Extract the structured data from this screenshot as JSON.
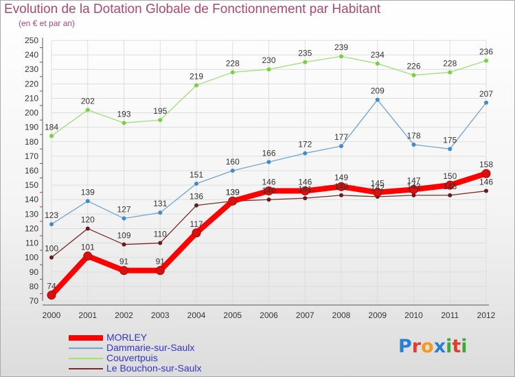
{
  "header": {
    "title": "Evolution de la Dotation Globale de Fonctionnement par Habitant",
    "subtitle": "(en € et par an)"
  },
  "logo": {
    "text": "Proxiti",
    "colors": [
      "#2a7fd4",
      "#e43b2f",
      "#f39a1c",
      "#2a7fd4",
      "#3ca83c",
      "#e43b2f",
      "#3ca83c"
    ]
  },
  "chart_data": {
    "type": "line",
    "x": [
      "2000",
      "2001",
      "2002",
      "2003",
      "2004",
      "2005",
      "2006",
      "2007",
      "2008",
      "2009",
      "2010",
      "2011",
      "2012"
    ],
    "ylim": [
      70,
      250
    ],
    "yticks": [
      70,
      80,
      90,
      100,
      110,
      120,
      130,
      140,
      150,
      160,
      170,
      180,
      190,
      200,
      210,
      220,
      230,
      240,
      250
    ],
    "grid": true,
    "legend_position": "bottom-left",
    "series": [
      {
        "name": "MORLEY",
        "color": "#ff0000",
        "marker": "#d91010",
        "values": [
          74,
          101,
          91,
          91,
          117,
          139,
          146,
          146,
          149,
          145,
          147,
          150,
          158
        ]
      },
      {
        "name": "Dammarie-sur-Saulx",
        "color": "#6fa3d4",
        "marker": "#3f8ad0",
        "values": [
          123,
          139,
          127,
          131,
          151,
          160,
          166,
          172,
          177,
          209,
          178,
          175,
          207
        ]
      },
      {
        "name": "Couvertpuis",
        "color": "#9ee07a",
        "marker": "#79d13f",
        "values": [
          184,
          202,
          193,
          195,
          219,
          228,
          230,
          235,
          239,
          234,
          226,
          228,
          236
        ]
      },
      {
        "name": "Le Bouchon-sur-Saulx",
        "color": "#7a2a2a",
        "marker": "#6a1a1a",
        "values": [
          100,
          120,
          109,
          110,
          136,
          139,
          140,
          141,
          143,
          142,
          143,
          143,
          146
        ]
      }
    ]
  }
}
